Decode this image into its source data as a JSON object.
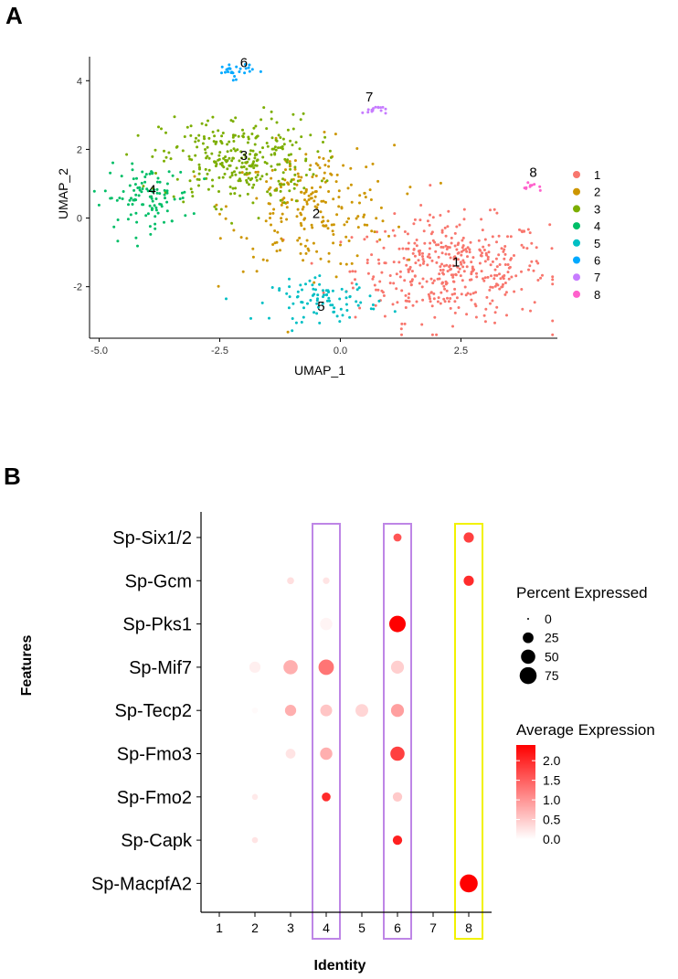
{
  "panel_a_label": "A",
  "panel_b_label": "B",
  "chart_data": [
    {
      "type": "scatter",
      "xlabel": "UMAP_1",
      "ylabel": "UMAP_2",
      "xlim": [
        -5.2,
        4.5
      ],
      "ylim": [
        -3.5,
        4.7
      ],
      "xticks": [
        -5.0,
        -2.5,
        0.0,
        2.5
      ],
      "xtick_labels": [
        "-5.0",
        "-2.5",
        "0.0",
        "2.5"
      ],
      "yticks": [
        -2,
        0,
        2,
        4
      ],
      "ytick_labels": [
        "-2",
        "0",
        "2",
        "4"
      ],
      "grid": false,
      "legend_position": "right",
      "series": [
        {
          "name": "1",
          "color": "#F8766D",
          "center": [
            2.3,
            -1.5
          ],
          "spread": [
            1.0,
            0.75
          ],
          "count": 420
        },
        {
          "name": "2",
          "color": "#CD9600",
          "center": [
            -0.6,
            0.3
          ],
          "spread": [
            0.85,
            0.9
          ],
          "count": 230
        },
        {
          "name": "3",
          "color": "#7CAE00",
          "center": [
            -2.1,
            1.7
          ],
          "spread": [
            0.8,
            0.65
          ],
          "count": 300
        },
        {
          "name": "4",
          "color": "#00BE67",
          "center": [
            -4.0,
            0.6
          ],
          "spread": [
            0.45,
            0.45
          ],
          "count": 110
        },
        {
          "name": "5",
          "color": "#00BFC4",
          "center": [
            -0.3,
            -2.4
          ],
          "spread": [
            0.55,
            0.3
          ],
          "count": 90
        },
        {
          "name": "6",
          "color": "#00A9FF",
          "center": [
            -2.2,
            4.3
          ],
          "spread": [
            0.2,
            0.12
          ],
          "count": 28
        },
        {
          "name": "7",
          "color": "#C77CFF",
          "center": [
            0.7,
            3.15
          ],
          "spread": [
            0.12,
            0.07
          ],
          "count": 16
        },
        {
          "name": "8",
          "color": "#FF61CC",
          "center": [
            4.0,
            0.9
          ],
          "spread": [
            0.1,
            0.06
          ],
          "count": 10
        }
      ],
      "cluster_labels": [
        {
          "text": "1",
          "x": 2.4,
          "y": -1.3
        },
        {
          "text": "2",
          "x": -0.5,
          "y": 0.1
        },
        {
          "text": "3",
          "x": -2.0,
          "y": 1.8
        },
        {
          "text": "4",
          "x": -3.9,
          "y": 0.8
        },
        {
          "text": "5",
          "x": -0.4,
          "y": -2.6
        },
        {
          "text": "6",
          "x": -2.0,
          "y": 4.5
        },
        {
          "text": "7",
          "x": 0.6,
          "y": 3.5
        },
        {
          "text": "8",
          "x": 4.0,
          "y": 1.3
        }
      ]
    },
    {
      "type": "dot",
      "xlabel": "Identity",
      "ylabel": "Features",
      "categories": [
        "1",
        "2",
        "3",
        "4",
        "5",
        "6",
        "7",
        "8"
      ],
      "features": [
        "Sp-Six1/2",
        "Sp-Gcm",
        "Sp-Pks1",
        "Sp-Mif7",
        "Sp-Tecp2",
        "Sp-Fmo3",
        "Sp-Fmo2",
        "Sp-Capk",
        "Sp-MacpfA2"
      ],
      "points": [
        {
          "feature": "Sp-Six1/2",
          "identity": "6",
          "pct": 12,
          "avg": 1.6
        },
        {
          "feature": "Sp-Six1/2",
          "identity": "8",
          "pct": 22,
          "avg": 1.8
        },
        {
          "feature": "Sp-Gcm",
          "identity": "3",
          "pct": 8,
          "avg": 0.3
        },
        {
          "feature": "Sp-Gcm",
          "identity": "4",
          "pct": 7,
          "avg": 0.25
        },
        {
          "feature": "Sp-Gcm",
          "identity": "8",
          "pct": 22,
          "avg": 2.0
        },
        {
          "feature": "Sp-Pks1",
          "identity": "4",
          "pct": 35,
          "avg": 0.1
        },
        {
          "feature": "Sp-Pks1",
          "identity": "6",
          "pct": 70,
          "avg": 2.4
        },
        {
          "feature": "Sp-Mif7",
          "identity": "2",
          "pct": 28,
          "avg": 0.15
        },
        {
          "feature": "Sp-Mif7",
          "identity": "3",
          "pct": 50,
          "avg": 0.75
        },
        {
          "feature": "Sp-Mif7",
          "identity": "4",
          "pct": 60,
          "avg": 1.3
        },
        {
          "feature": "Sp-Mif7",
          "identity": "6",
          "pct": 40,
          "avg": 0.45
        },
        {
          "feature": "Sp-Tecp2",
          "identity": "2",
          "pct": 5,
          "avg": 0.05
        },
        {
          "feature": "Sp-Tecp2",
          "identity": "3",
          "pct": 28,
          "avg": 0.75
        },
        {
          "feature": "Sp-Tecp2",
          "identity": "4",
          "pct": 32,
          "avg": 0.55
        },
        {
          "feature": "Sp-Tecp2",
          "identity": "5",
          "pct": 38,
          "avg": 0.4
        },
        {
          "feature": "Sp-Tecp2",
          "identity": "6",
          "pct": 40,
          "avg": 0.9
        },
        {
          "feature": "Sp-Fmo3",
          "identity": "3",
          "pct": 20,
          "avg": 0.25
        },
        {
          "feature": "Sp-Fmo3",
          "identity": "4",
          "pct": 35,
          "avg": 0.75
        },
        {
          "feature": "Sp-Fmo3",
          "identity": "6",
          "pct": 50,
          "avg": 1.8
        },
        {
          "feature": "Sp-Fmo2",
          "identity": "2",
          "pct": 5,
          "avg": 0.2
        },
        {
          "feature": "Sp-Fmo2",
          "identity": "4",
          "pct": 15,
          "avg": 2.0
        },
        {
          "feature": "Sp-Fmo2",
          "identity": "6",
          "pct": 18,
          "avg": 0.5
        },
        {
          "feature": "Sp-Capk",
          "identity": "2",
          "pct": 5,
          "avg": 0.25
        },
        {
          "feature": "Sp-Capk",
          "identity": "6",
          "pct": 18,
          "avg": 2.1
        },
        {
          "feature": "Sp-MacpfA2",
          "identity": "8",
          "pct": 85,
          "avg": 2.4
        }
      ],
      "highlight_boxes": [
        {
          "identity": "4",
          "color": "#BE86E6"
        },
        {
          "identity": "6",
          "color": "#BE86E6"
        },
        {
          "identity": "8",
          "color": "#F2F200"
        }
      ],
      "size_legend": {
        "title": "Percent Expressed",
        "levels": [
          0,
          25,
          50,
          75
        ],
        "labels": [
          "0",
          "25",
          "50",
          "75"
        ]
      },
      "color_legend": {
        "title": "Average Expression",
        "min": 0.0,
        "max": 2.4,
        "low_color": "#FFFFFF",
        "high_color": "#FF0000",
        "ticks": [
          0.0,
          0.5,
          1.0,
          1.5,
          2.0
        ],
        "tick_labels": [
          "0.0",
          "0.5",
          "1.0",
          "1.5",
          "2.0"
        ]
      }
    }
  ]
}
